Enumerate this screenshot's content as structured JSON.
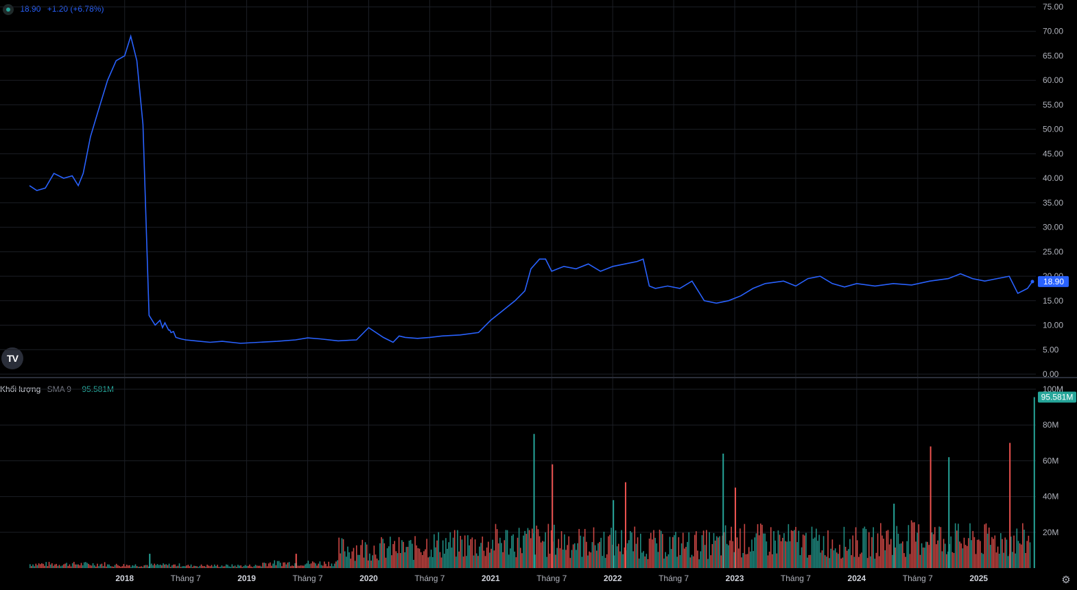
{
  "legend": {
    "price_value": "18.90",
    "price_change": "+1.20 (+6.78%)",
    "volume_label": "Khối lượng",
    "sma_label": "SMA 9",
    "volume_value": "95.581M"
  },
  "colors": {
    "line": "#2962ff",
    "up": "#26a69a",
    "down": "#ef5350",
    "grid": "#1c1f26",
    "price_tag": "#2962ff",
    "volume_tag": "#26a69a"
  },
  "icons": {
    "logo": "tradingview-logo-icon",
    "status": "status-dot-icon",
    "settings": "gear-icon"
  },
  "chart_data": [
    {
      "type": "line",
      "x_ticks": [
        "2018",
        "Tháng 7",
        "2019",
        "Tháng 7",
        "2020",
        "Tháng 7",
        "2021",
        "Tháng 7",
        "2022",
        "Tháng 7",
        "2023",
        "Tháng 7",
        "2024",
        "Tháng 7",
        "2025"
      ],
      "y_ticks": [
        "0.00",
        "5.00",
        "10.00",
        "15.00",
        "20.00",
        "25.00",
        "30.00",
        "35.00",
        "40.00",
        "45.00",
        "50.00",
        "55.00",
        "60.00",
        "65.00",
        "70.00",
        "75.00"
      ],
      "ylim": [
        0,
        75
      ],
      "last_value_label": "18.90",
      "series": [
        {
          "x": [
            2017.22,
            2017.28,
            2017.35,
            2017.42,
            2017.5,
            2017.57,
            2017.62,
            2017.66,
            2017.72,
            2017.78,
            2017.86,
            2017.93,
            2018.0,
            2018.05,
            2018.1,
            2018.15,
            2018.2,
            2018.25,
            2018.29,
            2018.31,
            2018.33,
            2018.35,
            2018.36,
            2018.37,
            2018.38,
            2018.4,
            2018.42,
            2018.46,
            2018.5,
            2018.58,
            2018.7,
            2018.8,
            2018.95,
            2019.1,
            2019.25,
            2019.4,
            2019.5,
            2019.6,
            2019.75,
            2019.9,
            2020.0,
            2020.12,
            2020.2,
            2020.25,
            2020.3,
            2020.4,
            2020.5,
            2020.6,
            2020.75,
            2020.9,
            2021.0,
            2021.1,
            2021.2,
            2021.28,
            2021.33,
            2021.4,
            2021.45,
            2021.5,
            2021.55,
            2021.6,
            2021.7,
            2021.8,
            2021.9,
            2022.0,
            2022.1,
            2022.2,
            2022.25,
            2022.3,
            2022.35,
            2022.45,
            2022.55,
            2022.65,
            2022.75,
            2022.85,
            2022.95,
            2023.05,
            2023.15,
            2023.25,
            2023.4,
            2023.5,
            2023.6,
            2023.7,
            2023.8,
            2023.9,
            2024.0,
            2024.15,
            2024.3,
            2024.45,
            2024.6,
            2024.75,
            2024.85,
            2024.95,
            2025.05,
            2025.15,
            2025.25,
            2025.32,
            2025.36,
            2025.4,
            2025.44
          ],
          "values": [
            38.5,
            37.5,
            38.0,
            41.0,
            40.0,
            40.5,
            38.5,
            41.0,
            48.5,
            53.5,
            60.0,
            64.0,
            65.0,
            69.0,
            64.0,
            51.0,
            12.0,
            10.0,
            11.0,
            9.5,
            10.5,
            9.5,
            9.0,
            9.0,
            8.5,
            8.7,
            7.5,
            7.2,
            7.0,
            6.8,
            6.5,
            6.7,
            6.3,
            6.5,
            6.7,
            7.0,
            7.4,
            7.2,
            6.8,
            7.0,
            9.5,
            7.5,
            6.5,
            7.8,
            7.5,
            7.3,
            7.5,
            7.8,
            8.0,
            8.5,
            11.0,
            13.0,
            15.0,
            17.0,
            21.5,
            23.5,
            23.5,
            21.0,
            21.5,
            22.0,
            21.5,
            22.5,
            21.0,
            22.0,
            22.5,
            23.0,
            23.5,
            18.0,
            17.5,
            18.0,
            17.5,
            19.0,
            15.0,
            14.5,
            15.0,
            16.0,
            17.5,
            18.5,
            19.0,
            18.0,
            19.5,
            20.0,
            18.5,
            17.8,
            18.5,
            18.0,
            18.5,
            18.2,
            19.0,
            19.5,
            20.5,
            19.5,
            19.0,
            19.5,
            20.0,
            16.5,
            17.0,
            17.5,
            18.9
          ]
        }
      ]
    },
    {
      "type": "bar",
      "y_ticks": [
        "20M",
        "40M",
        "60M",
        "80M",
        "100M"
      ],
      "ylim": [
        0,
        100
      ],
      "last_value_label": "95.581M",
      "x": [
        2018.2,
        2019.4,
        2021.35,
        2021.5,
        2022.0,
        2022.1,
        2022.9,
        2023.0,
        2024.3,
        2024.6,
        2024.75,
        2025.25,
        2025.45
      ],
      "values": [
        8,
        8,
        75,
        58,
        38,
        48,
        64,
        45,
        36,
        68,
        62,
        70,
        95.581
      ],
      "baseline_note_values": [
        2,
        1.5,
        1.2,
        2.5,
        10,
        12,
        14,
        13,
        12,
        14,
        13,
        15,
        14
      ]
    }
  ]
}
